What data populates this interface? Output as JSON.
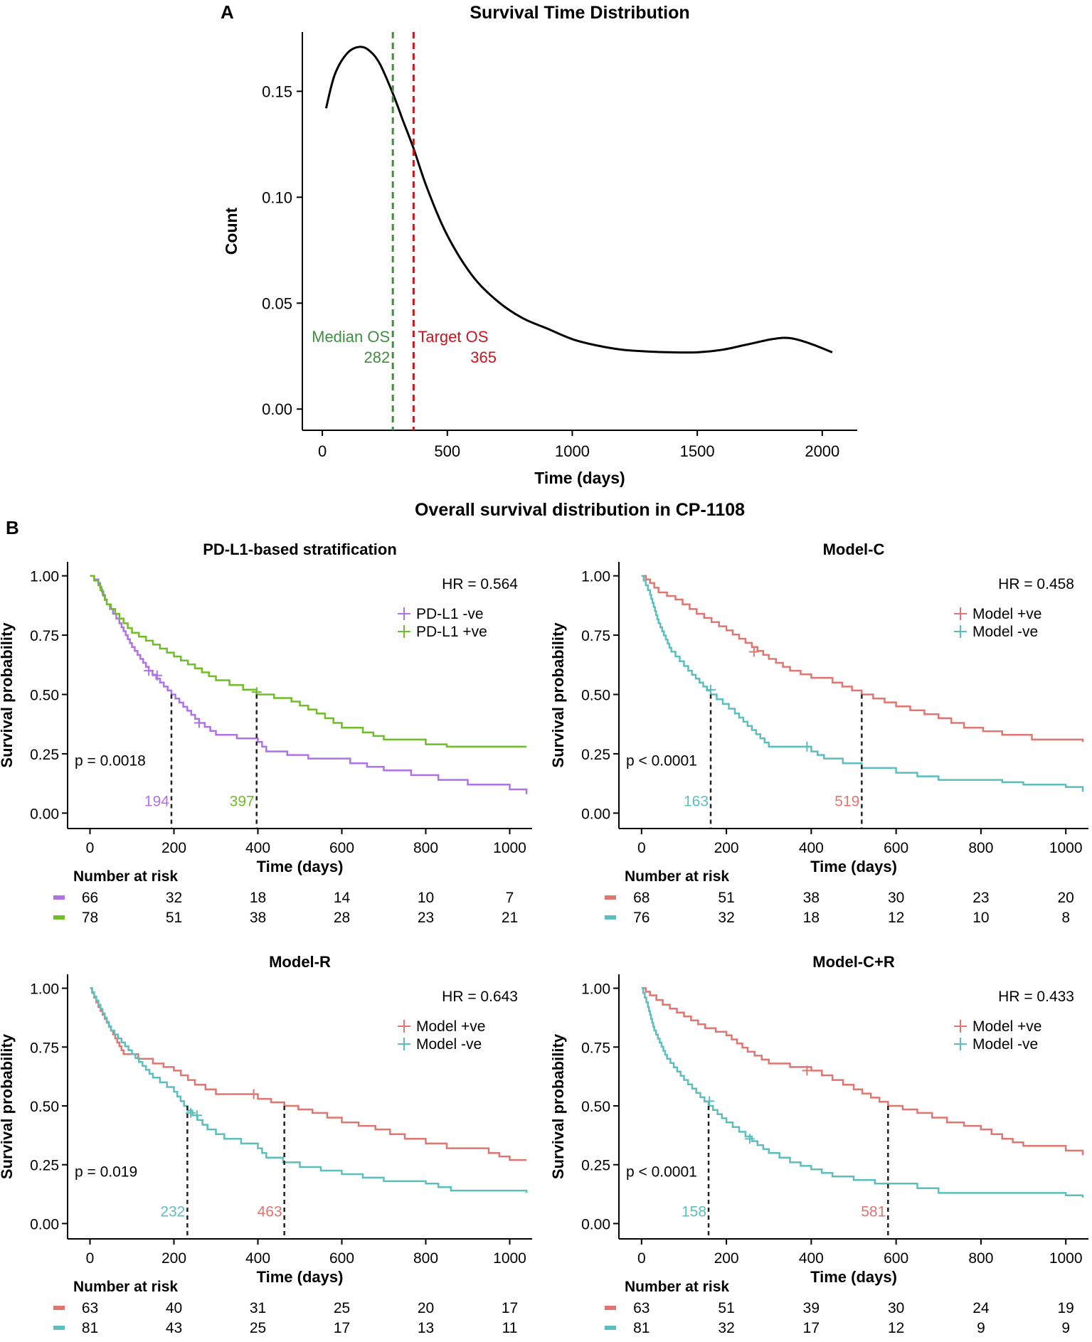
{
  "panel_labels": {
    "a": "A",
    "b": "B"
  },
  "section_b_title": "Overall survival distribution in CP-1108",
  "chart_data": [
    {
      "id": "panelA",
      "type": "line",
      "title": "Survival Time Distribution",
      "xlabel": "Time (days)",
      "ylabel": "Count",
      "xlim": [
        -80,
        2140
      ],
      "ylim": [
        -0.01,
        0.178
      ],
      "xticks": [
        0,
        500,
        1000,
        1500,
        2000
      ],
      "yticks": [
        0.0,
        0.05,
        0.1,
        0.15
      ],
      "ytick_labels": [
        "0.00",
        "0.05",
        "0.10",
        "0.15"
      ],
      "series": [
        {
          "name": "density",
          "color": "#000000",
          "x": [
            15,
            50,
            100,
            150,
            190,
            230,
            282,
            320,
            365,
            420,
            500,
            600,
            700,
            800,
            900,
            1000,
            1100,
            1200,
            1300,
            1400,
            1500,
            1600,
            1700,
            1800,
            1870,
            1950,
            2040
          ],
          "y": [
            0.142,
            0.158,
            0.168,
            0.171,
            0.169,
            0.163,
            0.149,
            0.137,
            0.123,
            0.104,
            0.082,
            0.063,
            0.051,
            0.043,
            0.038,
            0.033,
            0.03,
            0.028,
            0.0272,
            0.0268,
            0.0268,
            0.028,
            0.0305,
            0.033,
            0.0335,
            0.031,
            0.0268
          ]
        }
      ],
      "vlines": [
        {
          "x": 282,
          "color": "#3f8f3f",
          "label": "Median OS",
          "value": "282"
        },
        {
          "x": 365,
          "color": "#c8161e",
          "label": "Target OS",
          "value": "365"
        }
      ]
    },
    {
      "id": "panelB1",
      "type": "line",
      "title": "PD-L1-based stratification",
      "xlabel": "Time (days)",
      "ylabel": "Survival probability",
      "xlim": [
        -50,
        1050
      ],
      "ylim": [
        -0.05,
        1.05
      ],
      "xticks": [
        0,
        200,
        400,
        600,
        800,
        1000
      ],
      "yticks": [
        0,
        0.25,
        0.5,
        0.75,
        1.0
      ],
      "ytick_labels": [
        "0.00",
        "0.25",
        "0.50",
        "0.75",
        "1.00"
      ],
      "hr": "HR = 0.564",
      "pvalue": "p = 0.0018",
      "series": [
        {
          "name": "PD-L1 -ve",
          "color": "#b072e8",
          "knots": [
            [
              0,
              1.0
            ],
            [
              20,
              0.97
            ],
            [
              40,
              0.88
            ],
            [
              70,
              0.8
            ],
            [
              100,
              0.7
            ],
            [
              140,
              0.6
            ],
            [
              194,
              0.5
            ],
            [
              260,
              0.38
            ],
            [
              300,
              0.33
            ],
            [
              400,
              0.3
            ],
            [
              420,
              0.26
            ],
            [
              520,
              0.23
            ],
            [
              620,
              0.21
            ],
            [
              700,
              0.18
            ],
            [
              830,
              0.14
            ],
            [
              900,
              0.12
            ],
            [
              1000,
              0.1
            ],
            [
              1040,
              0.08
            ]
          ],
          "censors": [
            [
              140,
              0.6
            ],
            [
              160,
              0.58
            ],
            [
              260,
              0.38
            ]
          ]
        },
        {
          "name": "PD-L1 +ve",
          "color": "#6fbd28",
          "knots": [
            [
              0,
              1.0
            ],
            [
              20,
              0.96
            ],
            [
              40,
              0.88
            ],
            [
              70,
              0.82
            ],
            [
              100,
              0.76
            ],
            [
              150,
              0.71
            ],
            [
              200,
              0.66
            ],
            [
              250,
              0.61
            ],
            [
              300,
              0.56
            ],
            [
              397,
              0.5
            ],
            [
              480,
              0.47
            ],
            [
              540,
              0.42
            ],
            [
              600,
              0.36
            ],
            [
              650,
              0.34
            ],
            [
              700,
              0.31
            ],
            [
              800,
              0.29
            ],
            [
              850,
              0.28
            ],
            [
              1040,
              0.28
            ]
          ],
          "censors": [
            [
              397,
              0.51
            ]
          ]
        }
      ],
      "medians": [
        {
          "x": 194,
          "y": 0.5,
          "label": "194",
          "color": "#b072e8"
        },
        {
          "x": 397,
          "y": 0.5,
          "label": "397",
          "color": "#6fbd28"
        }
      ],
      "risk_table": {
        "title": "Number at risk",
        "rows": [
          {
            "color": "#b072e8",
            "values": [
              "66",
              "32",
              "18",
              "14",
              "10",
              "7"
            ]
          },
          {
            "color": "#6fbd28",
            "values": [
              "78",
              "51",
              "38",
              "28",
              "23",
              "21"
            ]
          }
        ]
      }
    },
    {
      "id": "panelB2",
      "type": "line",
      "title": "Model-C",
      "xlabel": "Time (days)",
      "ylabel": "Survival probability",
      "xlim": [
        -50,
        1050
      ],
      "ylim": [
        -0.05,
        1.05
      ],
      "xticks": [
        0,
        200,
        400,
        600,
        800,
        1000
      ],
      "yticks": [
        0,
        0.25,
        0.5,
        0.75,
        1.0
      ],
      "ytick_labels": [
        "0.00",
        "0.25",
        "0.50",
        "0.75",
        "1.00"
      ],
      "hr": "HR = 0.458",
      "pvalue": "p < 0.0001",
      "series": [
        {
          "name": "Model +ve",
          "color": "#e0766f",
          "knots": [
            [
              0,
              1.0
            ],
            [
              20,
              0.97
            ],
            [
              40,
              0.93
            ],
            [
              80,
              0.9
            ],
            [
              130,
              0.84
            ],
            [
              200,
              0.77
            ],
            [
              260,
              0.7
            ],
            [
              300,
              0.65
            ],
            [
              350,
              0.6
            ],
            [
              400,
              0.57
            ],
            [
              450,
              0.55
            ],
            [
              519,
              0.5
            ],
            [
              600,
              0.45
            ],
            [
              700,
              0.4
            ],
            [
              760,
              0.36
            ],
            [
              850,
              0.33
            ],
            [
              920,
              0.31
            ],
            [
              1040,
              0.3
            ]
          ],
          "censors": [
            [
              265,
              0.68
            ]
          ]
        },
        {
          "name": "Model -ve",
          "color": "#5cbfbf",
          "knots": [
            [
              0,
              1.0
            ],
            [
              20,
              0.92
            ],
            [
              40,
              0.8
            ],
            [
              70,
              0.68
            ],
            [
              110,
              0.6
            ],
            [
              163,
              0.5
            ],
            [
              220,
              0.42
            ],
            [
              260,
              0.35
            ],
            [
              300,
              0.28
            ],
            [
              400,
              0.26
            ],
            [
              430,
              0.23
            ],
            [
              519,
              0.19
            ],
            [
              600,
              0.17
            ],
            [
              700,
              0.14
            ],
            [
              850,
              0.13
            ],
            [
              900,
              0.12
            ],
            [
              1000,
              0.11
            ],
            [
              1040,
              0.09
            ]
          ],
          "censors": [
            [
              163,
              0.52
            ],
            [
              390,
              0.28
            ]
          ]
        }
      ],
      "medians": [
        {
          "x": 163,
          "y": 0.5,
          "label": "163",
          "color": "#5cbfbf"
        },
        {
          "x": 519,
          "y": 0.5,
          "label": "519",
          "color": "#e0766f"
        }
      ],
      "risk_table": {
        "title": "Number at risk",
        "rows": [
          {
            "color": "#e0766f",
            "values": [
              "68",
              "51",
              "38",
              "30",
              "23",
              "20"
            ]
          },
          {
            "color": "#5cbfbf",
            "values": [
              "76",
              "32",
              "18",
              "12",
              "10",
              "8"
            ]
          }
        ]
      }
    },
    {
      "id": "panelB3",
      "type": "line",
      "title": "Model-R",
      "xlabel": "Time (days)",
      "ylabel": "Survival probability",
      "xlim": [
        -50,
        1050
      ],
      "ylim": [
        -0.05,
        1.05
      ],
      "xticks": [
        0,
        200,
        400,
        600,
        800,
        1000
      ],
      "yticks": [
        0,
        0.25,
        0.5,
        0.75,
        1.0
      ],
      "ytick_labels": [
        "0.00",
        "0.25",
        "0.50",
        "0.75",
        "1.00"
      ],
      "hr": "HR = 0.643",
      "pvalue": "p = 0.019",
      "series": [
        {
          "name": "Model +ve",
          "color": "#e0766f",
          "knots": [
            [
              0,
              1.0
            ],
            [
              20,
              0.92
            ],
            [
              50,
              0.82
            ],
            [
              80,
              0.72
            ],
            [
              150,
              0.68
            ],
            [
              200,
              0.65
            ],
            [
              250,
              0.59
            ],
            [
              300,
              0.55
            ],
            [
              400,
              0.53
            ],
            [
              463,
              0.5
            ],
            [
              530,
              0.47
            ],
            [
              600,
              0.43
            ],
            [
              680,
              0.4
            ],
            [
              750,
              0.36
            ],
            [
              850,
              0.32
            ],
            [
              950,
              0.3
            ],
            [
              1000,
              0.27
            ],
            [
              1040,
              0.27
            ]
          ],
          "censors": [
            [
              390,
              0.55
            ]
          ]
        },
        {
          "name": "Model -ve",
          "color": "#5cbfbf",
          "knots": [
            [
              0,
              1.0
            ],
            [
              20,
              0.93
            ],
            [
              50,
              0.82
            ],
            [
              100,
              0.72
            ],
            [
              150,
              0.62
            ],
            [
              200,
              0.56
            ],
            [
              232,
              0.48
            ],
            [
              280,
              0.4
            ],
            [
              320,
              0.36
            ],
            [
              400,
              0.32
            ],
            [
              420,
              0.28
            ],
            [
              500,
              0.24
            ],
            [
              600,
              0.21
            ],
            [
              700,
              0.18
            ],
            [
              800,
              0.17
            ],
            [
              860,
              0.14
            ],
            [
              1000,
              0.14
            ],
            [
              1040,
              0.13
            ]
          ],
          "censors": [
            [
              240,
              0.47
            ],
            [
              255,
              0.46
            ]
          ]
        }
      ],
      "medians": [
        {
          "x": 232,
          "y": 0.5,
          "label": "232",
          "color": "#5cbfbf"
        },
        {
          "x": 463,
          "y": 0.5,
          "label": "463",
          "color": "#e0766f"
        }
      ],
      "risk_table": {
        "title": "Number at risk",
        "rows": [
          {
            "color": "#e0766f",
            "values": [
              "63",
              "40",
              "31",
              "25",
              "20",
              "17"
            ]
          },
          {
            "color": "#5cbfbf",
            "values": [
              "81",
              "43",
              "25",
              "17",
              "13",
              "11"
            ]
          }
        ]
      }
    },
    {
      "id": "panelB4",
      "type": "line",
      "title": "Model-C+R",
      "xlabel": "Time (days)",
      "ylabel": "Survival probability",
      "xlim": [
        -50,
        1050
      ],
      "ylim": [
        -0.05,
        1.05
      ],
      "xticks": [
        0,
        200,
        400,
        600,
        800,
        1000
      ],
      "yticks": [
        0,
        0.25,
        0.5,
        0.75,
        1.0
      ],
      "ytick_labels": [
        "0.00",
        "0.25",
        "0.50",
        "0.75",
        "1.00"
      ],
      "hr": "HR = 0.433",
      "pvalue": "p < 0.0001",
      "series": [
        {
          "name": "Model +ve",
          "color": "#e0766f",
          "knots": [
            [
              0,
              1.0
            ],
            [
              20,
              0.97
            ],
            [
              50,
              0.93
            ],
            [
              100,
              0.88
            ],
            [
              150,
              0.83
            ],
            [
              200,
              0.8
            ],
            [
              250,
              0.73
            ],
            [
              300,
              0.68
            ],
            [
              400,
              0.65
            ],
            [
              450,
              0.61
            ],
            [
              500,
              0.57
            ],
            [
              581,
              0.5
            ],
            [
              650,
              0.47
            ],
            [
              720,
              0.43
            ],
            [
              800,
              0.4
            ],
            [
              850,
              0.36
            ],
            [
              900,
              0.33
            ],
            [
              1000,
              0.31
            ],
            [
              1040,
              0.29
            ]
          ],
          "censors": [
            [
              390,
              0.65
            ]
          ]
        },
        {
          "name": "Model -ve",
          "color": "#5cbfbf",
          "knots": [
            [
              0,
              1.0
            ],
            [
              15,
              0.92
            ],
            [
              30,
              0.82
            ],
            [
              60,
              0.7
            ],
            [
              100,
              0.61
            ],
            [
              158,
              0.5
            ],
            [
              200,
              0.43
            ],
            [
              260,
              0.35
            ],
            [
              300,
              0.3
            ],
            [
              350,
              0.26
            ],
            [
              400,
              0.23
            ],
            [
              450,
              0.2
            ],
            [
              550,
              0.17
            ],
            [
              650,
              0.15
            ],
            [
              700,
              0.13
            ],
            [
              1000,
              0.12
            ],
            [
              1040,
              0.11
            ]
          ],
          "censors": [
            [
              160,
              0.52
            ],
            [
              255,
              0.36
            ]
          ]
        }
      ],
      "medians": [
        {
          "x": 158,
          "y": 0.5,
          "label": "158",
          "color": "#5cbfbf"
        },
        {
          "x": 581,
          "y": 0.5,
          "label": "581",
          "color": "#e0766f"
        }
      ],
      "risk_table": {
        "title": "Number at risk",
        "rows": [
          {
            "color": "#e0766f",
            "values": [
              "63",
              "51",
              "39",
              "30",
              "24",
              "19"
            ]
          },
          {
            "color": "#5cbfbf",
            "values": [
              "81",
              "32",
              "17",
              "12",
              "9",
              "9"
            ]
          }
        ]
      }
    }
  ]
}
